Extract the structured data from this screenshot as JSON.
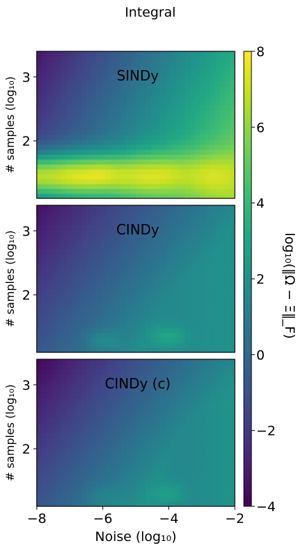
{
  "figure": {
    "title": "Integral"
  },
  "colorbar": {
    "label": "log₁₀(‖Ω − Ξ‖_F)",
    "colormap": "viridis",
    "range": [
      -4,
      8
    ],
    "ticks": [
      "−4",
      "−2",
      "0",
      "2",
      "4",
      "6",
      "8"
    ],
    "tick_values": [
      -4,
      -2,
      0,
      2,
      4,
      6,
      8
    ]
  },
  "chart_data": [
    {
      "type": "heatmap",
      "title": "SINDy",
      "xlabel": "",
      "ylabel": "# samples (log₁₀)",
      "xlim": [
        -8,
        -2
      ],
      "ylim": [
        1.1,
        3.4
      ],
      "yticks": [
        "2",
        "3"
      ],
      "grid": false,
      "description_values": {
        "low_noise_high_samples": -2.5,
        "high_noise_high_samples": 2.2,
        "low_samples_band": 7.0,
        "peak": 7.8
      }
    },
    {
      "type": "heatmap",
      "title": "CINDy",
      "xlabel": "",
      "ylabel": "# samples (log₁₀)",
      "xlim": [
        -8,
        -2
      ],
      "ylim": [
        1.1,
        3.4
      ],
      "yticks": [
        "2",
        "3"
      ],
      "grid": false,
      "description_values": {
        "low_noise_high_samples": -3.5,
        "high_noise_high_samples": 1.8,
        "low_samples_band": 3.0,
        "peak": 4.2
      }
    },
    {
      "type": "heatmap",
      "title": "CINDy (c)",
      "xlabel": "Noise (log₁₀)",
      "ylabel": "# samples (log₁₀)",
      "xlim": [
        -8,
        -2
      ],
      "ylim": [
        1.1,
        3.4
      ],
      "xticks": [
        "−8",
        "−6",
        "−4",
        "−2"
      ],
      "yticks": [
        "2",
        "3"
      ],
      "grid": false,
      "description_values": {
        "low_noise_high_samples": -3.8,
        "high_noise_high_samples": 1.8,
        "low_samples_band": 3.0,
        "peak": 3.6
      }
    }
  ]
}
